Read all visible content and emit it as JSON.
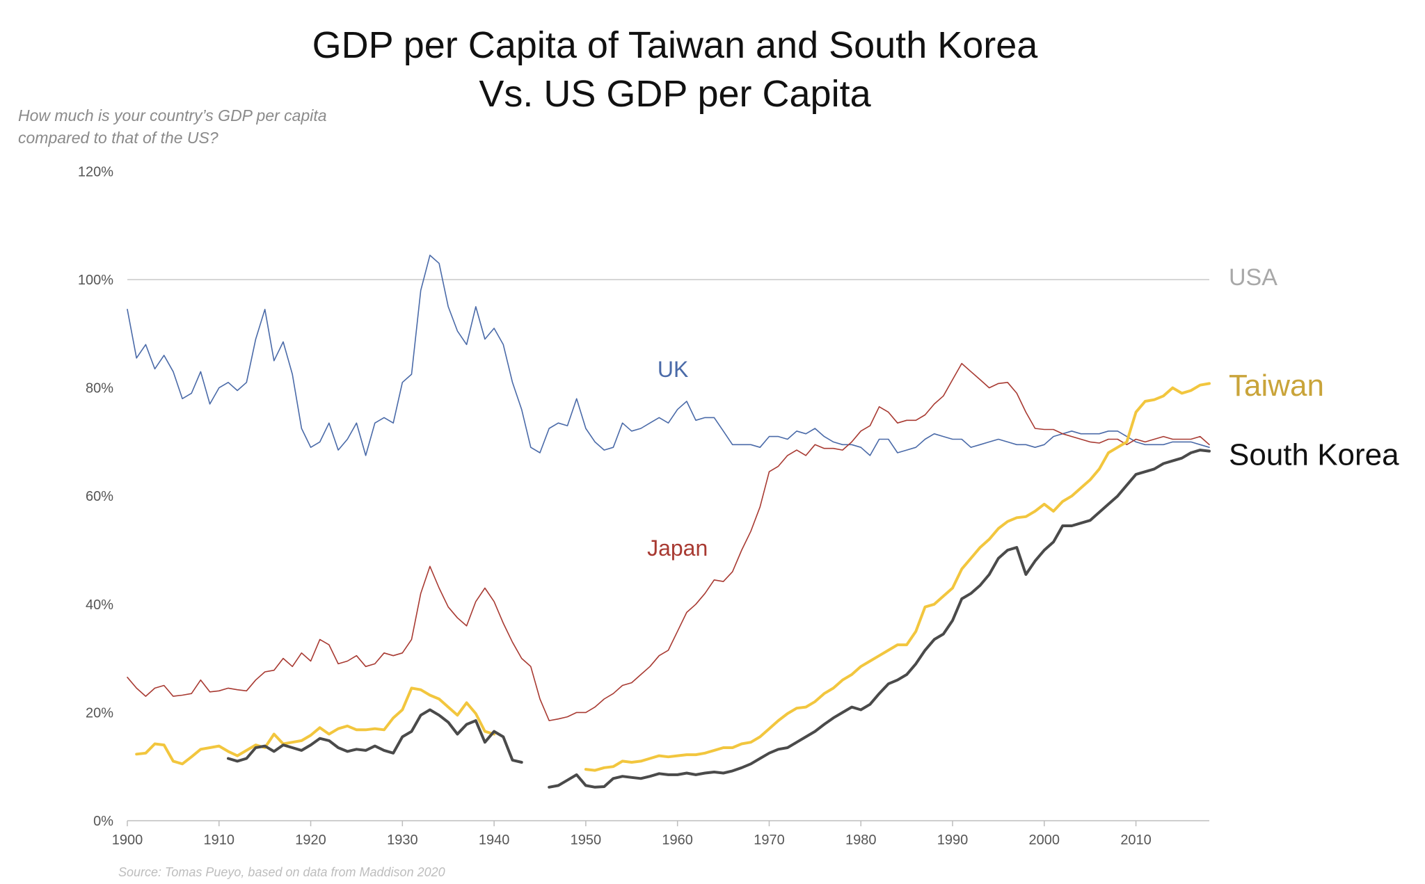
{
  "chart_data": {
    "type": "line",
    "title_line1": "GDP per Capita of Taiwan and South Korea",
    "title_line2": "Vs. US GDP per Capita",
    "subtitle": "How much is your country’s GDP per capita compared to that of the US?",
    "source": "Source: Tomas Pueyo, based on data from Maddison 2020",
    "xlim": [
      1900,
      2018
    ],
    "ylim": [
      0,
      120
    ],
    "x_ticks": [
      1900,
      1910,
      1920,
      1930,
      1940,
      1950,
      1960,
      1970,
      1980,
      1990,
      2000,
      2010
    ],
    "y_ticks": [
      0,
      20,
      40,
      60,
      80,
      100,
      120
    ],
    "y_tick_labels": [
      "0%",
      "20%",
      "40%",
      "60%",
      "80%",
      "100%",
      "120%"
    ],
    "grid": false,
    "reference": {
      "name": "USA",
      "value": 100,
      "color": "#c8c8c8"
    },
    "series": [
      {
        "name": "UK",
        "color": "#4a6aa8",
        "x": [
          1900,
          1901,
          1902,
          1903,
          1904,
          1905,
          1906,
          1907,
          1908,
          1909,
          1910,
          1911,
          1912,
          1913,
          1914,
          1915,
          1916,
          1917,
          1918,
          1919,
          1920,
          1921,
          1922,
          1923,
          1924,
          1925,
          1926,
          1927,
          1928,
          1929,
          1930,
          1931,
          1932,
          1933,
          1934,
          1935,
          1936,
          1937,
          1938,
          1939,
          1940,
          1941,
          1942,
          1943,
          1944,
          1945,
          1946,
          1947,
          1948,
          1949,
          1950,
          1951,
          1952,
          1953,
          1954,
          1955,
          1956,
          1957,
          1958,
          1959,
          1960,
          1961,
          1962,
          1963,
          1964,
          1965,
          1966,
          1967,
          1968,
          1969,
          1970,
          1971,
          1972,
          1973,
          1974,
          1975,
          1976,
          1977,
          1978,
          1979,
          1980,
          1981,
          1982,
          1983,
          1984,
          1985,
          1986,
          1987,
          1988,
          1989,
          1990,
          1991,
          1992,
          1993,
          1994,
          1995,
          1996,
          1997,
          1998,
          1999,
          2000,
          2001,
          2002,
          2003,
          2004,
          2005,
          2006,
          2007,
          2008,
          2009,
          2010,
          2011,
          2012,
          2013,
          2014,
          2015,
          2016,
          2017,
          2018
        ],
        "y": [
          94.5,
          85.5,
          88,
          83.5,
          86,
          83,
          78,
          79,
          83,
          77,
          80,
          81,
          79.5,
          81,
          89,
          94.5,
          85,
          88.5,
          82.5,
          72.5,
          69,
          70,
          73.5,
          68.5,
          70.5,
          73.5,
          67.5,
          73.5,
          74.5,
          73.5,
          81,
          82.5,
          98,
          104.5,
          103,
          95,
          90.5,
          88,
          95,
          89,
          91,
          88,
          81,
          76,
          69,
          68,
          72.5,
          73.5,
          73,
          78,
          72.5,
          70,
          68.5,
          69,
          73.5,
          72,
          72.5,
          73.5,
          74.5,
          73.5,
          76,
          77.5,
          74,
          74.5,
          74.5,
          72,
          69.5,
          69.5,
          69.5,
          69,
          71,
          71,
          70.5,
          72,
          71.5,
          72.5,
          71,
          70,
          69.5,
          69.5,
          69,
          67.5,
          70.5,
          70.5,
          68,
          68.5,
          69,
          70.5,
          71.5,
          71,
          70.5,
          70.5,
          69,
          69.5,
          70,
          70.5,
          70,
          69.5,
          69.5,
          69,
          69.5,
          71,
          71.5,
          72,
          71.5,
          71.5,
          71.5,
          72,
          72,
          71,
          70,
          69.5,
          69.5,
          69.5,
          70,
          70,
          70,
          69.5,
          69
        ]
      },
      {
        "name": "Japan",
        "color": "#a83a32",
        "x": [
          1900,
          1901,
          1902,
          1903,
          1904,
          1905,
          1906,
          1907,
          1908,
          1909,
          1910,
          1911,
          1912,
          1913,
          1914,
          1915,
          1916,
          1917,
          1918,
          1919,
          1920,
          1921,
          1922,
          1923,
          1924,
          1925,
          1926,
          1927,
          1928,
          1929,
          1930,
          1931,
          1932,
          1933,
          1934,
          1935,
          1936,
          1937,
          1938,
          1939,
          1940,
          1941,
          1942,
          1943,
          1944,
          1945,
          1946,
          1947,
          1948,
          1949,
          1950,
          1951,
          1952,
          1953,
          1954,
          1955,
          1956,
          1957,
          1958,
          1959,
          1960,
          1961,
          1962,
          1963,
          1964,
          1965,
          1966,
          1967,
          1968,
          1969,
          1970,
          1971,
          1972,
          1973,
          1974,
          1975,
          1976,
          1977,
          1978,
          1979,
          1980,
          1981,
          1982,
          1983,
          1984,
          1985,
          1986,
          1987,
          1988,
          1989,
          1990,
          1991,
          1992,
          1993,
          1994,
          1995,
          1996,
          1997,
          1998,
          1999,
          2000,
          2001,
          2002,
          2003,
          2004,
          2005,
          2006,
          2007,
          2008,
          2009,
          2010,
          2011,
          2012,
          2013,
          2014,
          2015,
          2016,
          2017,
          2018
        ],
        "y": [
          26.5,
          24.5,
          23,
          24.5,
          25,
          23,
          23.2,
          23.5,
          26,
          23.8,
          24,
          24.5,
          24.2,
          24,
          26,
          27.5,
          27.8,
          30,
          28.5,
          31,
          29.5,
          33.5,
          32.5,
          29,
          29.5,
          30.5,
          28.5,
          29,
          31,
          30.5,
          31,
          33.5,
          42,
          47,
          43,
          39.5,
          37.5,
          36,
          40.5,
          43,
          40.5,
          36.5,
          33,
          30,
          28.5,
          22.5,
          18.5,
          18.8,
          19.2,
          20,
          20,
          21,
          22.5,
          23.5,
          25,
          25.5,
          27,
          28.5,
          30.5,
          31.5,
          35,
          38.5,
          40,
          42,
          44.5,
          44.2,
          46,
          50,
          53.5,
          58,
          64.5,
          65.5,
          67.5,
          68.5,
          67.5,
          69.5,
          68.8,
          68.8,
          68.5,
          70,
          72,
          73,
          76.5,
          75.5,
          73.5,
          74,
          74,
          75,
          77,
          78.5,
          81.5,
          84.5,
          83,
          81.5,
          80,
          80.8,
          81,
          79,
          75.5,
          72.5,
          72.3,
          72.3,
          71.5,
          71,
          70.5,
          70,
          69.8,
          70.5,
          70.5,
          69.5,
          70.5,
          70,
          70.5,
          71,
          70.5,
          70.5,
          70.5,
          71,
          69.5
        ]
      },
      {
        "name": "Taiwan",
        "color": "#f2c63e",
        "x": [
          1901,
          1902,
          1903,
          1904,
          1905,
          1906,
          1907,
          1908,
          1909,
          1910,
          1911,
          1912,
          1913,
          1914,
          1915,
          1916,
          1917,
          1918,
          1919,
          1920,
          1921,
          1922,
          1923,
          1924,
          1925,
          1926,
          1927,
          1928,
          1929,
          1930,
          1931,
          1932,
          1933,
          1934,
          1935,
          1936,
          1937,
          1938,
          1939,
          1940,
          null,
          1950,
          1951,
          1952,
          1953,
          1954,
          1955,
          1956,
          1957,
          1958,
          1959,
          1960,
          1961,
          1962,
          1963,
          1964,
          1965,
          1966,
          1967,
          1968,
          1969,
          1970,
          1971,
          1972,
          1973,
          1974,
          1975,
          1976,
          1977,
          1978,
          1979,
          1980,
          1981,
          1982,
          1983,
          1984,
          1985,
          1986,
          1987,
          1988,
          1989,
          1990,
          1991,
          1992,
          1993,
          1994,
          1995,
          1996,
          1997,
          1998,
          1999,
          2000,
          2001,
          2002,
          2003,
          2004,
          2005,
          2006,
          2007,
          2008,
          2009,
          2010,
          2011,
          2012,
          2013,
          2014,
          2015,
          2016,
          2017,
          2018
        ],
        "y": [
          12.3,
          12.5,
          14.2,
          14,
          11,
          10.5,
          11.8,
          13.2,
          13.5,
          13.8,
          12.8,
          12,
          13,
          14,
          13.5,
          16,
          14.2,
          14.5,
          14.8,
          15.8,
          17.2,
          16,
          17,
          17.5,
          16.8,
          16.8,
          17,
          16.8,
          19,
          20.5,
          24.5,
          24.2,
          23.2,
          22.5,
          21,
          19.5,
          21.8,
          19.8,
          16.5,
          16,
          null,
          9.5,
          9.3,
          9.8,
          10,
          11,
          10.8,
          11,
          11.5,
          12,
          11.8,
          12,
          12.2,
          12.2,
          12.5,
          13,
          13.5,
          13.5,
          14.2,
          14.5,
          15.5,
          17,
          18.5,
          19.8,
          20.8,
          21,
          22,
          23.5,
          24.5,
          26,
          27,
          28.5,
          29.5,
          30.5,
          31.5,
          32.5,
          32.5,
          35,
          39.5,
          40,
          41.5,
          43,
          46.5,
          48.5,
          50.5,
          52,
          54,
          55.3,
          56,
          56.2,
          57.2,
          58.5,
          57.2,
          59,
          60,
          61.5,
          63,
          65,
          68,
          69,
          70,
          75.5,
          77.5,
          77.8,
          78.5,
          80,
          79,
          79.5,
          80.5,
          80.8
        ]
      },
      {
        "name": "South Korea",
        "color": "#4a4a4a",
        "x": [
          1911,
          1912,
          1913,
          1914,
          1915,
          1916,
          1917,
          1918,
          1919,
          1920,
          1921,
          1922,
          1923,
          1924,
          1925,
          1926,
          1927,
          1928,
          1929,
          1930,
          1931,
          1932,
          1933,
          1934,
          1935,
          1936,
          1937,
          1938,
          1939,
          1940,
          1941,
          1942,
          1943,
          null,
          1946,
          1947,
          1948,
          1949,
          1950,
          1951,
          1952,
          1953,
          1954,
          1955,
          1956,
          1957,
          1958,
          1959,
          1960,
          1961,
          1962,
          1963,
          1964,
          1965,
          1966,
          1967,
          1968,
          1969,
          1970,
          1971,
          1972,
          1973,
          1974,
          1975,
          1976,
          1977,
          1978,
          1979,
          1980,
          1981,
          1982,
          1983,
          1984,
          1985,
          1986,
          1987,
          1988,
          1989,
          1990,
          1991,
          1992,
          1993,
          1994,
          1995,
          1996,
          1997,
          1998,
          1999,
          2000,
          2001,
          2002,
          2003,
          2004,
          2005,
          2006,
          2007,
          2008,
          2009,
          2010,
          2011,
          2012,
          2013,
          2014,
          2015,
          2016,
          2017,
          2018
        ],
        "y": [
          11.5,
          11,
          11.5,
          13.5,
          13.8,
          12.8,
          14,
          13.5,
          13,
          14,
          15.2,
          14.8,
          13.5,
          12.8,
          13.2,
          13,
          13.8,
          13,
          12.5,
          15.5,
          16.5,
          19.5,
          20.5,
          19.5,
          18.2,
          16,
          17.8,
          18.5,
          14.5,
          16.5,
          15.5,
          11.2,
          10.8,
          null,
          6.2,
          6.5,
          7.5,
          8.5,
          6.5,
          6.2,
          6.3,
          7.8,
          8.2,
          8,
          7.8,
          8.2,
          8.7,
          8.5,
          8.5,
          8.8,
          8.5,
          8.8,
          9,
          8.8,
          9.2,
          9.8,
          10.5,
          11.5,
          12.5,
          13.2,
          13.5,
          14.5,
          15.5,
          16.5,
          17.8,
          19,
          20,
          21,
          20.5,
          21.5,
          23.5,
          25.3,
          26,
          27,
          29,
          31.5,
          33.5,
          34.5,
          37,
          41,
          42,
          43.5,
          45.5,
          48.5,
          50,
          50.5,
          45.5,
          48,
          50,
          51.5,
          54.5,
          54.5,
          55,
          55.5,
          57,
          58.5,
          60,
          62,
          64,
          64.5,
          65,
          66,
          66.5,
          67,
          68,
          68.5,
          68.3
        ]
      }
    ],
    "inline_labels": [
      {
        "series": "UK",
        "text": "UK"
      },
      {
        "series": "Japan",
        "text": "Japan"
      }
    ],
    "end_labels": [
      {
        "series": "USA",
        "text": "USA"
      },
      {
        "series": "Taiwan",
        "text": "Taiwan"
      },
      {
        "series": "South Korea",
        "text": "South Korea"
      }
    ]
  }
}
